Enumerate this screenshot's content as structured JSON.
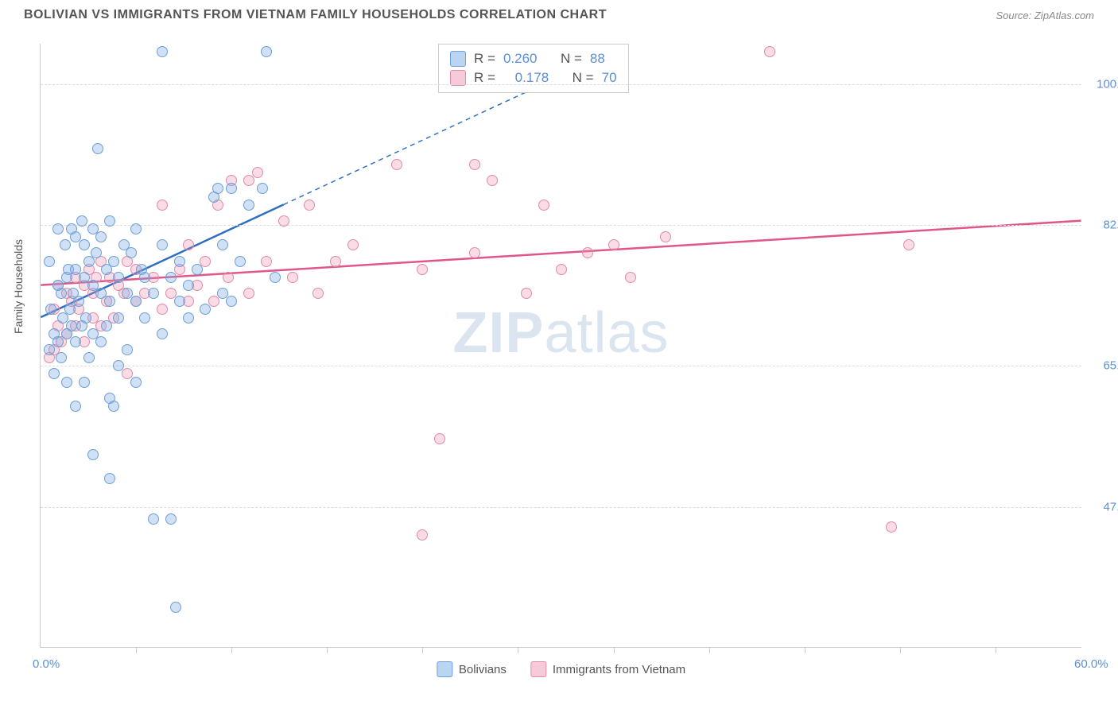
{
  "title": "BOLIVIAN VS IMMIGRANTS FROM VIETNAM FAMILY HOUSEHOLDS CORRELATION CHART",
  "source": "Source: ZipAtlas.com",
  "ylabel": "Family Households",
  "watermark_a": "ZIP",
  "watermark_b": "atlas",
  "chart": {
    "type": "scatter",
    "xlim": [
      0,
      60
    ],
    "ylim": [
      30,
      105
    ],
    "x_axis_labels": [
      {
        "v": 0,
        "label": "0.0%"
      },
      {
        "v": 60,
        "label": "60.0%"
      }
    ],
    "x_ticks": [
      5.5,
      11,
      16.5,
      22,
      27.5,
      33,
      38.5,
      44,
      49.5,
      55
    ],
    "y_gridlines": [
      47.5,
      65.0,
      82.5,
      100.0
    ],
    "y_tick_labels": [
      {
        "v": 47.5,
        "label": "47.5%"
      },
      {
        "v": 65.0,
        "label": "65.0%"
      },
      {
        "v": 82.5,
        "label": "82.5%"
      },
      {
        "v": 100.0,
        "label": "100.0%"
      }
    ],
    "background_color": "#ffffff",
    "grid_color": "#dddddd",
    "axis_color": "#cccccc"
  },
  "series_blue": {
    "name": "Bolivians",
    "color_fill": "rgba(120,170,225,0.35)",
    "color_stroke": "#6d9fd8",
    "R": "0.260",
    "N": "88",
    "trend": {
      "x1": 0,
      "y1": 71,
      "x2": 14,
      "y2": 85,
      "x2_dash": 30,
      "y2_dash": 101,
      "stroke": "#2f6fc0",
      "width": 2.5
    },
    "points": [
      [
        0.5,
        67
      ],
      [
        0.5,
        78
      ],
      [
        0.6,
        72
      ],
      [
        0.8,
        64
      ],
      [
        0.8,
        69
      ],
      [
        1.0,
        82
      ],
      [
        1.0,
        75
      ],
      [
        1.0,
        68
      ],
      [
        1.2,
        74
      ],
      [
        1.2,
        66
      ],
      [
        1.3,
        71
      ],
      [
        1.4,
        80
      ],
      [
        1.5,
        69
      ],
      [
        1.5,
        76
      ],
      [
        1.5,
        63
      ],
      [
        1.6,
        77
      ],
      [
        1.7,
        72
      ],
      [
        1.8,
        82
      ],
      [
        1.8,
        70
      ],
      [
        1.9,
        74
      ],
      [
        2.0,
        81
      ],
      [
        2.0,
        68
      ],
      [
        2.0,
        77
      ],
      [
        2.2,
        73
      ],
      [
        2.4,
        83
      ],
      [
        2.4,
        70
      ],
      [
        2.5,
        76
      ],
      [
        2.5,
        63
      ],
      [
        2.5,
        80
      ],
      [
        2.6,
        71
      ],
      [
        2.8,
        78
      ],
      [
        2.8,
        66
      ],
      [
        3.0,
        75
      ],
      [
        3.0,
        82
      ],
      [
        3.0,
        69
      ],
      [
        3.2,
        79
      ],
      [
        3.3,
        92
      ],
      [
        3.5,
        74
      ],
      [
        3.5,
        68
      ],
      [
        3.5,
        81
      ],
      [
        3.8,
        77
      ],
      [
        3.8,
        70
      ],
      [
        4.0,
        83
      ],
      [
        4.0,
        61
      ],
      [
        4.0,
        73
      ],
      [
        4.2,
        78
      ],
      [
        4.5,
        71
      ],
      [
        4.5,
        76
      ],
      [
        4.5,
        65
      ],
      [
        4.8,
        80
      ],
      [
        5.0,
        74
      ],
      [
        5.0,
        67
      ],
      [
        5.2,
        79
      ],
      [
        5.5,
        73
      ],
      [
        5.5,
        82
      ],
      [
        5.5,
        63
      ],
      [
        5.8,
        77
      ],
      [
        6.0,
        71
      ],
      [
        6.0,
        76
      ],
      [
        6.5,
        74
      ],
      [
        6.5,
        46
      ],
      [
        7.0,
        80
      ],
      [
        7.0,
        69
      ],
      [
        7.0,
        104
      ],
      [
        7.5,
        76
      ],
      [
        7.5,
        46
      ],
      [
        8.0,
        73
      ],
      [
        8.0,
        78
      ],
      [
        8.5,
        71
      ],
      [
        8.5,
        75
      ],
      [
        9.0,
        77
      ],
      [
        9.5,
        72
      ],
      [
        10.0,
        86
      ],
      [
        10.2,
        87
      ],
      [
        10.5,
        74
      ],
      [
        10.5,
        80
      ],
      [
        11.0,
        87
      ],
      [
        11.0,
        73
      ],
      [
        11.5,
        78
      ],
      [
        12.0,
        85
      ],
      [
        12.8,
        87
      ],
      [
        13.0,
        104
      ],
      [
        13.5,
        76
      ],
      [
        4.0,
        51
      ],
      [
        3.0,
        54
      ],
      [
        7.8,
        35
      ],
      [
        4.2,
        60
      ],
      [
        2.0,
        60
      ]
    ]
  },
  "series_pink": {
    "name": "Immigrants from Vietnam",
    "color_fill": "rgba(235,140,170,0.3)",
    "color_stroke": "#e08ba8",
    "R": "0.178",
    "N": "70",
    "trend": {
      "x1": 0,
      "y1": 75,
      "x2": 60,
      "y2": 83,
      "stroke": "#e0568a",
      "width": 2.5
    },
    "points": [
      [
        0.8,
        67
      ],
      [
        0.8,
        72
      ],
      [
        1.0,
        70
      ],
      [
        1.0,
        75
      ],
      [
        1.2,
        68
      ],
      [
        1.5,
        74
      ],
      [
        1.5,
        69
      ],
      [
        1.8,
        73
      ],
      [
        2.0,
        76
      ],
      [
        2.0,
        70
      ],
      [
        2.2,
        72
      ],
      [
        2.5,
        75
      ],
      [
        2.5,
        68
      ],
      [
        2.8,
        77
      ],
      [
        3.0,
        71
      ],
      [
        3.0,
        74
      ],
      [
        3.2,
        76
      ],
      [
        3.5,
        70
      ],
      [
        3.5,
        78
      ],
      [
        3.8,
        73
      ],
      [
        4.0,
        76
      ],
      [
        4.2,
        71
      ],
      [
        4.5,
        75
      ],
      [
        4.8,
        74
      ],
      [
        5.0,
        78
      ],
      [
        5.0,
        64
      ],
      [
        5.5,
        73
      ],
      [
        5.5,
        77
      ],
      [
        6.0,
        74
      ],
      [
        6.5,
        76
      ],
      [
        7.0,
        72
      ],
      [
        7.0,
        85
      ],
      [
        7.5,
        74
      ],
      [
        8.0,
        77
      ],
      [
        8.5,
        73
      ],
      [
        8.5,
        80
      ],
      [
        9.0,
        75
      ],
      [
        9.5,
        78
      ],
      [
        10.0,
        73
      ],
      [
        10.2,
        85
      ],
      [
        10.8,
        76
      ],
      [
        11.0,
        88
      ],
      [
        12.0,
        74
      ],
      [
        12.0,
        88
      ],
      [
        12.5,
        89
      ],
      [
        13.0,
        78
      ],
      [
        14.0,
        83
      ],
      [
        14.5,
        76
      ],
      [
        15.5,
        85
      ],
      [
        16.0,
        74
      ],
      [
        17.0,
        78
      ],
      [
        18.0,
        80
      ],
      [
        20.5,
        90
      ],
      [
        22.0,
        77
      ],
      [
        22.0,
        44
      ],
      [
        23.0,
        56
      ],
      [
        25.0,
        90
      ],
      [
        25.0,
        79
      ],
      [
        26.0,
        88
      ],
      [
        28.0,
        74
      ],
      [
        29.0,
        85
      ],
      [
        30.0,
        77
      ],
      [
        31.5,
        79
      ],
      [
        33.0,
        80
      ],
      [
        34.0,
        76
      ],
      [
        36.0,
        81
      ],
      [
        42.0,
        104
      ],
      [
        49.0,
        45
      ],
      [
        50.0,
        80
      ],
      [
        0.5,
        66
      ]
    ]
  },
  "legend_stats_labels": {
    "R": "R =",
    "N": "N ="
  }
}
